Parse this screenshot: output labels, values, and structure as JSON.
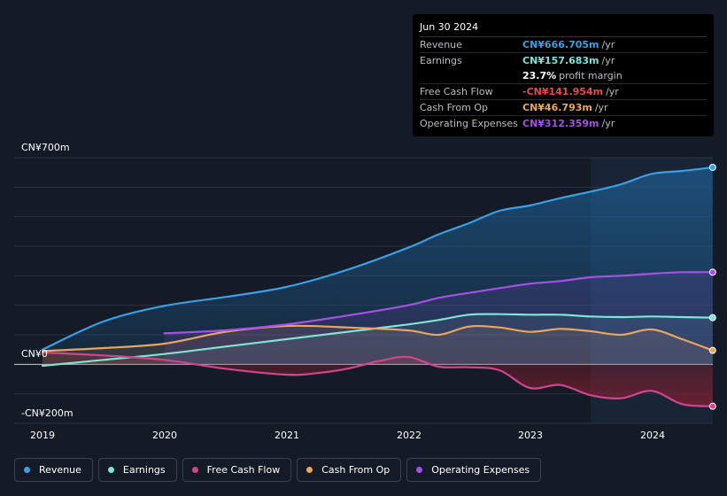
{
  "chart_data": {
    "type": "area",
    "ylim": [
      -200,
      700
    ],
    "y_tick_labels": [
      "CN¥700m",
      "CN¥0",
      "-CN¥200m"
    ],
    "x_tick_labels": [
      "2019",
      "2020",
      "2021",
      "2022",
      "2023",
      "2024"
    ],
    "highlight_start": 2023.5,
    "series": [
      {
        "name": "Revenue",
        "color": "#3a9fe6",
        "x": [
          2019.0,
          2019.5,
          2020.0,
          2020.5,
          2021.0,
          2021.5,
          2022.0,
          2022.25,
          2022.5,
          2022.75,
          2023.0,
          2023.25,
          2023.5,
          2023.75,
          2024.0,
          2024.25,
          2024.5
        ],
        "values": [
          50,
          145,
          198,
          228,
          262,
          320,
          395,
          440,
          478,
          520,
          538,
          563,
          585,
          610,
          645,
          655,
          667
        ]
      },
      {
        "name": "Earnings",
        "color": "#7fe3d7",
        "x": [
          2019.0,
          2019.5,
          2020.0,
          2020.5,
          2021.0,
          2021.5,
          2022.0,
          2022.25,
          2022.5,
          2022.75,
          2023.0,
          2023.25,
          2023.5,
          2023.75,
          2024.0,
          2024.25,
          2024.5
        ],
        "values": [
          -5,
          15,
          35,
          60,
          85,
          110,
          135,
          150,
          168,
          170,
          168,
          168,
          162,
          160,
          162,
          160,
          158
        ]
      },
      {
        "name": "Free Cash Flow",
        "color": "#d0468e",
        "x": [
          2019.0,
          2019.5,
          2020.0,
          2020.5,
          2021.0,
          2021.25,
          2021.5,
          2021.75,
          2022.0,
          2022.25,
          2022.5,
          2022.75,
          2023.0,
          2023.25,
          2023.5,
          2023.75,
          2024.0,
          2024.25,
          2024.5
        ],
        "values": [
          40,
          30,
          15,
          -15,
          -35,
          -30,
          -15,
          10,
          25,
          -8,
          -10,
          -20,
          -80,
          -70,
          -105,
          -115,
          -90,
          -135,
          -142
        ]
      },
      {
        "name": "Cash From Op",
        "color": "#e8a660",
        "x": [
          2019.0,
          2019.5,
          2020.0,
          2020.5,
          2021.0,
          2021.5,
          2022.0,
          2022.25,
          2022.5,
          2022.75,
          2023.0,
          2023.25,
          2023.5,
          2023.75,
          2024.0,
          2024.25,
          2024.5
        ],
        "values": [
          45,
          55,
          70,
          110,
          130,
          125,
          115,
          100,
          128,
          125,
          110,
          120,
          112,
          100,
          118,
          85,
          47
        ]
      },
      {
        "name": "Operating Expenses",
        "color": "#a651e6",
        "x": [
          2020.0,
          2020.5,
          2021.0,
          2021.5,
          2022.0,
          2022.25,
          2022.5,
          2022.75,
          2023.0,
          2023.25,
          2023.5,
          2023.75,
          2024.0,
          2024.25,
          2024.5
        ],
        "values": [
          105,
          115,
          135,
          165,
          200,
          225,
          242,
          258,
          273,
          282,
          295,
          300,
          307,
          312,
          312
        ]
      }
    ]
  },
  "tooltip": {
    "date": "Jun 30 2024",
    "rows": [
      {
        "label": "Revenue",
        "value": "CN¥666.705m",
        "unit": "/yr",
        "color": "#3a9fe6"
      },
      {
        "label": "Earnings",
        "value": "CN¥157.683m",
        "unit": "/yr",
        "color": "#7fe3d7"
      },
      {
        "label": "",
        "value": "23.7%",
        "unit": "profit margin",
        "color": "#ffffff"
      },
      {
        "label": "Free Cash Flow",
        "value": "-CN¥141.954m",
        "unit": "/yr",
        "color": "#e24c4c"
      },
      {
        "label": "Cash From Op",
        "value": "CN¥46.793m",
        "unit": "/yr",
        "color": "#e8a660"
      },
      {
        "label": "Operating Expenses",
        "value": "CN¥312.359m",
        "unit": "/yr",
        "color": "#a651e6"
      }
    ]
  },
  "legend": [
    {
      "label": "Revenue",
      "color": "#3a9fe6"
    },
    {
      "label": "Earnings",
      "color": "#7fe3d7"
    },
    {
      "label": "Free Cash Flow",
      "color": "#d0468e"
    },
    {
      "label": "Cash From Op",
      "color": "#e8a660"
    },
    {
      "label": "Operating Expenses",
      "color": "#a651e6"
    }
  ]
}
